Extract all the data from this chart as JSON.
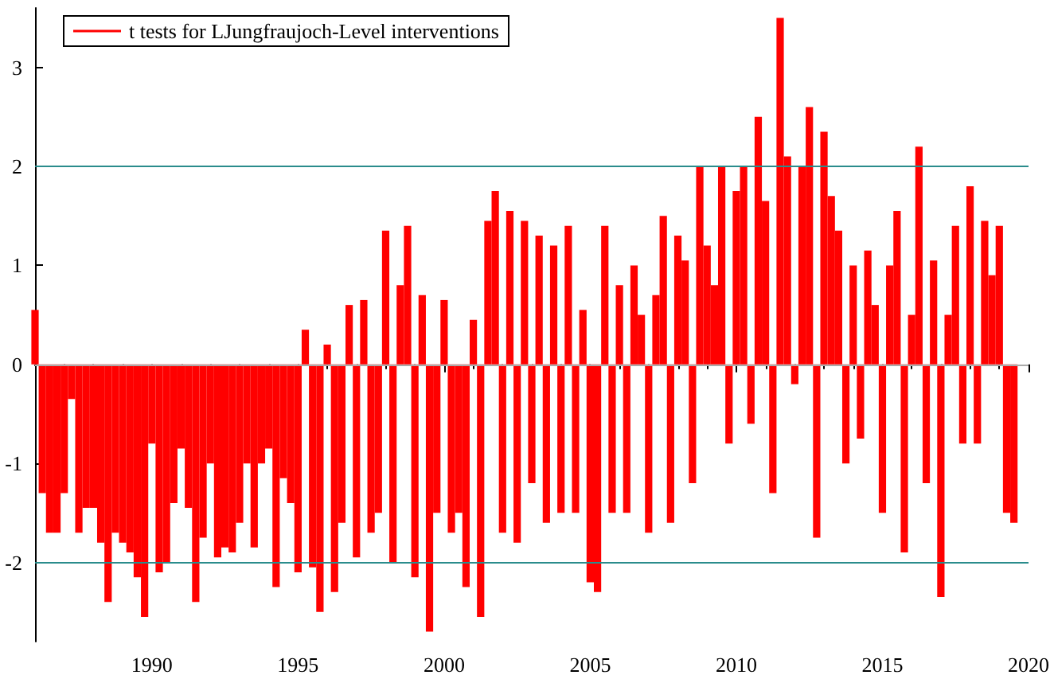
{
  "chart_data": {
    "type": "bar",
    "x": [
      1986.0,
      1986.25,
      1986.5,
      1986.75,
      1987.0,
      1987.25,
      1987.5,
      1987.75,
      1988.0,
      1988.25,
      1988.5,
      1988.75,
      1989.0,
      1989.25,
      1989.5,
      1989.75,
      1990.0,
      1990.25,
      1990.5,
      1990.75,
      1991.0,
      1991.25,
      1991.5,
      1991.75,
      1992.0,
      1992.25,
      1992.5,
      1992.75,
      1993.0,
      1993.25,
      1993.5,
      1993.75,
      1994.0,
      1994.25,
      1994.5,
      1994.75,
      1995.0,
      1995.25,
      1995.5,
      1995.75,
      1996.0,
      1996.25,
      1996.5,
      1996.75,
      1997.0,
      1997.25,
      1997.5,
      1997.75,
      1998.0,
      1998.25,
      1998.5,
      1998.75,
      1999.0,
      1999.25,
      1999.5,
      1999.75,
      2000.0,
      2000.25,
      2000.5,
      2000.75,
      2001.0,
      2001.25,
      2001.5,
      2001.75,
      2002.0,
      2002.25,
      2002.5,
      2002.75,
      2003.0,
      2003.25,
      2003.5,
      2003.75,
      2004.0,
      2004.25,
      2004.5,
      2004.75,
      2005.0,
      2005.25,
      2005.5,
      2005.75,
      2006.0,
      2006.25,
      2006.5,
      2006.75,
      2007.0,
      2007.25,
      2007.5,
      2007.75,
      2008.0,
      2008.25,
      2008.5,
      2008.75,
      2009.0,
      2009.25,
      2009.5,
      2009.75,
      2010.0,
      2010.25,
      2010.5,
      2010.75,
      2011.0,
      2011.25,
      2011.5,
      2011.75,
      2012.0,
      2012.25,
      2012.5,
      2012.75,
      2013.0,
      2013.25,
      2013.5,
      2013.75,
      2014.0,
      2014.25,
      2014.5,
      2014.75,
      2015.0,
      2015.25,
      2015.5,
      2015.75,
      2016.0,
      2016.25,
      2016.5,
      2016.75,
      2017.0,
      2017.25,
      2017.5,
      2017.75,
      2018.0,
      2018.25,
      2018.5,
      2018.75,
      2019.0,
      2019.25,
      2019.5
    ],
    "series": [
      {
        "name": "t tests for LJungfraujoch-Level interventions",
        "color": "#ff0000",
        "values": [
          0.55,
          -1.3,
          -1.7,
          -1.7,
          -1.3,
          -0.35,
          -1.7,
          -1.45,
          -1.45,
          -1.8,
          -2.4,
          -1.7,
          -1.8,
          -1.9,
          -2.15,
          -2.55,
          -0.8,
          -2.1,
          -2.0,
          -1.4,
          -0.85,
          -1.45,
          -2.4,
          -1.75,
          -1.0,
          -1.95,
          -1.85,
          -1.9,
          -1.6,
          -1.0,
          -1.85,
          -1.0,
          -0.85,
          -2.25,
          -1.15,
          -1.4,
          -2.1,
          0.35,
          -2.05,
          -2.5,
          0.2,
          -2.3,
          -1.6,
          0.6,
          -1.95,
          0.65,
          -1.7,
          -1.5,
          1.35,
          -2.0,
          0.8,
          1.4,
          -2.15,
          0.7,
          -2.7,
          -1.5,
          0.65,
          -1.7,
          -1.5,
          -2.25,
          0.45,
          -2.55,
          1.45,
          1.75,
          -1.7,
          1.55,
          -1.8,
          1.45,
          -1.2,
          1.3,
          -1.6,
          1.2,
          -1.5,
          1.4,
          -1.5,
          0.55,
          -2.2,
          -2.3,
          1.4,
          -1.5,
          0.8,
          -1.5,
          1.0,
          0.5,
          -1.7,
          0.7,
          1.5,
          -1.6,
          1.3,
          1.05,
          -1.2,
          2.0,
          1.2,
          0.8,
          2.0,
          -0.8,
          1.75,
          2.0,
          -0.6,
          2.5,
          1.65,
          -1.3,
          3.5,
          2.1,
          -0.2,
          2.0,
          2.6,
          -1.75,
          2.35,
          1.7,
          1.35,
          -1.0,
          1.0,
          -0.75,
          1.15,
          0.6,
          -1.5,
          1.0,
          1.55,
          -1.9,
          0.5,
          2.2,
          -1.2,
          1.05,
          -2.35,
          0.5,
          1.4,
          -0.8,
          1.8,
          -0.8,
          1.45,
          0.9,
          1.4,
          -1.5,
          -1.6
        ]
      }
    ],
    "xlim": [
      1986,
      2020
    ],
    "xticks": [
      1990,
      1995,
      2000,
      2005,
      2010,
      2015,
      2020
    ],
    "ylim": [
      -2.8,
      3.6
    ],
    "yticks": [
      -2,
      -1,
      0,
      1,
      2,
      3
    ],
    "ref_lines": [
      {
        "axis": "y",
        "value": 0,
        "color": "#aaaaaa"
      },
      {
        "axis": "y",
        "value": 2,
        "color": "#2a8c8c"
      },
      {
        "axis": "y",
        "value": -2,
        "color": "#2a8c8c"
      }
    ],
    "grid": false,
    "legend": "top left"
  }
}
